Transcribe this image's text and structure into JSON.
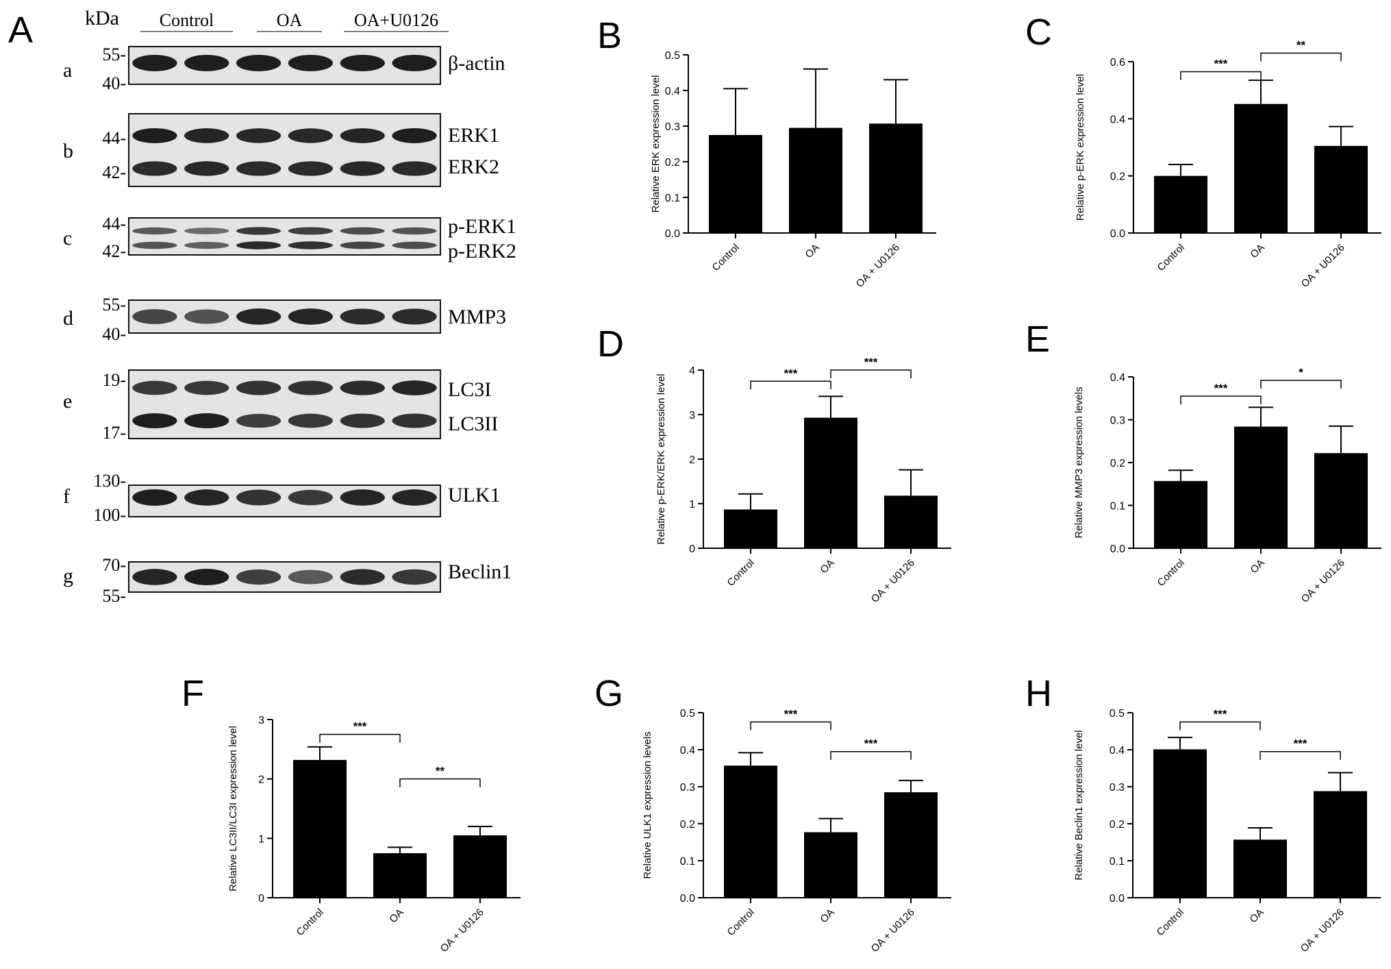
{
  "figure": {
    "panel_a": {
      "letter": "A",
      "kda_label": "kDa",
      "groups": [
        "Control",
        "OA",
        "OA+U0126"
      ],
      "lanes": 6,
      "blots": [
        {
          "row": "a",
          "markers": [
            "55-",
            "40-"
          ],
          "proteins": [
            "β-actin"
          ],
          "lane_intensity": [
            [
              1,
              1,
              1,
              1,
              1,
              1
            ]
          ]
        },
        {
          "row": "b",
          "markers": [
            "44-",
            "42-"
          ],
          "proteins": [
            "ERK1",
            "ERK2"
          ],
          "lane_intensity": [
            [
              1,
              0.95,
              0.92,
              0.92,
              0.95,
              1
            ],
            [
              0.9,
              0.92,
              0.9,
              0.9,
              0.92,
              0.9
            ]
          ]
        },
        {
          "row": "c",
          "markers": [
            "44-",
            "42-"
          ],
          "proteins": [
            "p-ERK1",
            "p-ERK2"
          ],
          "lane_intensity": [
            [
              0.55,
              0.4,
              0.8,
              0.75,
              0.65,
              0.6
            ],
            [
              0.6,
              0.5,
              0.9,
              0.85,
              0.7,
              0.65
            ]
          ]
        },
        {
          "row": "d",
          "markers": [
            "55-",
            "40-"
          ],
          "proteins": [
            "MMP3"
          ],
          "lane_intensity": [
            [
              0.7,
              0.6,
              0.95,
              0.95,
              0.9,
              0.9
            ]
          ]
        },
        {
          "row": "e",
          "markers": [
            "19-",
            "17-"
          ],
          "proteins": [
            "LC3I",
            "LC3II"
          ],
          "lane_intensity": [
            [
              0.8,
              0.8,
              0.85,
              0.85,
              0.9,
              0.95
            ],
            [
              1,
              1,
              0.75,
              0.8,
              0.85,
              0.85
            ]
          ]
        },
        {
          "row": "f",
          "markers": [
            "130-",
            "100-"
          ],
          "proteins": [
            "ULK1"
          ],
          "lane_intensity": [
            [
              1,
              0.95,
              0.85,
              0.8,
              0.95,
              0.95
            ]
          ]
        },
        {
          "row": "g",
          "markers": [
            "70-",
            "55-"
          ],
          "proteins": [
            "Beclin1"
          ],
          "lane_intensity": [
            [
              0.95,
              1,
              0.75,
              0.55,
              0.9,
              0.8
            ]
          ]
        }
      ]
    }
  },
  "chart_data": [
    {
      "panel": "B",
      "type": "bar",
      "categories": [
        "Control",
        "OA",
        "OA + U0126"
      ],
      "values": [
        0.275,
        0.295,
        0.307
      ],
      "errors": [
        0.13,
        0.165,
        0.123
      ],
      "ylabel": "Relative ERK expression level",
      "ylim": [
        0,
        0.5
      ],
      "yticks": [
        "0.0",
        "0.1",
        "0.2",
        "0.3",
        "0.4",
        "0.5"
      ],
      "significance": []
    },
    {
      "panel": "C",
      "type": "bar",
      "categories": [
        "Control",
        "OA",
        "OA + U0126"
      ],
      "values": [
        0.2,
        0.452,
        0.305
      ],
      "errors": [
        0.04,
        0.083,
        0.068
      ],
      "ylabel": "Relative p-ERK expression level",
      "ylim": [
        0,
        0.6
      ],
      "yticks": [
        "0.0",
        "0.2",
        "0.4",
        "0.6"
      ],
      "significance": [
        {
          "from": 0,
          "to": 1,
          "label": "***",
          "y": 0.565
        },
        {
          "from": 1,
          "to": 2,
          "label": "**",
          "y": 0.63
        }
      ]
    },
    {
      "panel": "D",
      "type": "bar",
      "categories": [
        "Control",
        "OA",
        "OA + U0126"
      ],
      "values": [
        0.87,
        2.93,
        1.18
      ],
      "errors": [
        0.35,
        0.48,
        0.58
      ],
      "ylabel": "Relative p-ERK/ERK expression level",
      "ylim": [
        0,
        4
      ],
      "yticks": [
        "0",
        "1",
        "2",
        "3",
        "4"
      ],
      "significance": [
        {
          "from": 0,
          "to": 1,
          "label": "***",
          "y": 3.75
        },
        {
          "from": 1,
          "to": 2,
          "label": "***",
          "y": 4.0
        }
      ]
    },
    {
      "panel": "E",
      "type": "bar",
      "categories": [
        "Control",
        "OA",
        "OA + U0126"
      ],
      "values": [
        0.157,
        0.284,
        0.222
      ],
      "errors": [
        0.025,
        0.045,
        0.063
      ],
      "ylabel": "Relative MMP3 expression levels",
      "ylim": [
        0,
        0.4
      ],
      "yticks": [
        "0.0",
        "0.1",
        "0.2",
        "0.3",
        "0.4"
      ],
      "significance": [
        {
          "from": 0,
          "to": 1,
          "label": "***",
          "y": 0.355
        },
        {
          "from": 1,
          "to": 2,
          "label": "*",
          "y": 0.392
        }
      ]
    },
    {
      "panel": "F",
      "type": "bar",
      "categories": [
        "Control",
        "OA",
        "OA + U0126"
      ],
      "values": [
        2.32,
        0.75,
        1.05
      ],
      "errors": [
        0.22,
        0.1,
        0.15
      ],
      "ylabel": "Relative LC3II/LC3I expression level",
      "ylim": [
        0,
        3
      ],
      "yticks": [
        "0",
        "1",
        "2",
        "3"
      ],
      "significance": [
        {
          "from": 0,
          "to": 1,
          "label": "***",
          "y": 2.75
        },
        {
          "from": 1,
          "to": 2,
          "label": "**",
          "y": 2.0
        }
      ]
    },
    {
      "panel": "G",
      "type": "bar",
      "categories": [
        "Control",
        "OA",
        "OA + U0126"
      ],
      "values": [
        0.357,
        0.177,
        0.285
      ],
      "errors": [
        0.035,
        0.037,
        0.032
      ],
      "ylabel": "Relative ULK1 expression levels",
      "ylim": [
        0,
        0.5
      ],
      "yticks": [
        "0.0",
        "0.1",
        "0.2",
        "0.3",
        "0.4",
        "0.5"
      ],
      "significance": [
        {
          "from": 0,
          "to": 1,
          "label": "***",
          "y": 0.475
        },
        {
          "from": 1,
          "to": 2,
          "label": "***",
          "y": 0.395
        }
      ]
    },
    {
      "panel": "H",
      "type": "bar",
      "categories": [
        "Control",
        "OA",
        "OA + U0126"
      ],
      "values": [
        0.401,
        0.157,
        0.288
      ],
      "errors": [
        0.032,
        0.032,
        0.05
      ],
      "ylabel": "Relative Beclin1 expression level",
      "ylim": [
        0,
        0.5
      ],
      "yticks": [
        "0.0",
        "0.1",
        "0.2",
        "0.3",
        "0.4",
        "0.5"
      ],
      "significance": [
        {
          "from": 0,
          "to": 1,
          "label": "***",
          "y": 0.475
        },
        {
          "from": 1,
          "to": 2,
          "label": "***",
          "y": 0.395
        }
      ]
    }
  ]
}
